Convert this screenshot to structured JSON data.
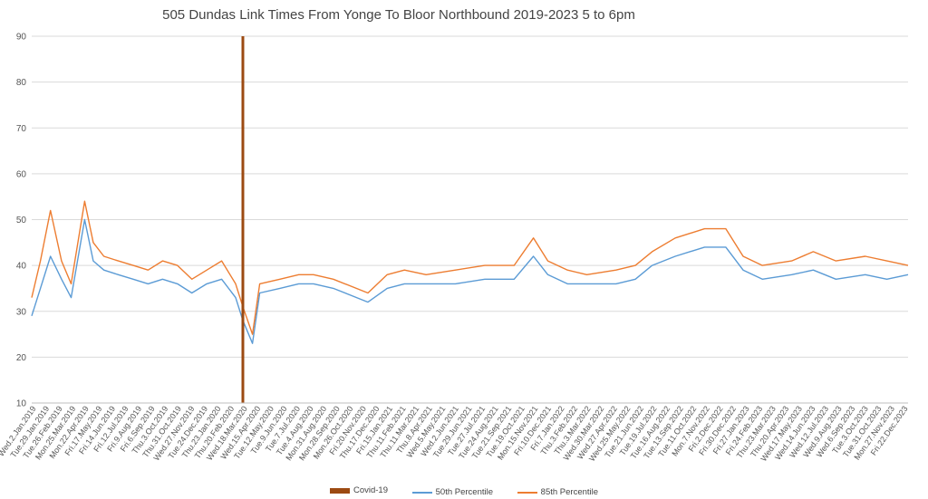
{
  "chart_data": {
    "type": "line",
    "title": "505 Dundas Link Times From Yonge To Bloor Northbound 2019-2023 5 to 6pm",
    "xlabel": "",
    "ylabel": "",
    "ylim": [
      10,
      90
    ],
    "yticks": [
      10,
      20,
      30,
      40,
      50,
      60,
      70,
      80,
      90
    ],
    "grid": true,
    "legend_position": "bottom",
    "x_range": [
      "2019-01-02",
      "2023-12-29"
    ],
    "x_tick_labels": [
      "Wed.2.Jan.2019",
      "Tue.29.Jan.2019",
      "Tue.26.Feb.2019",
      "Mon.25.Mar.2019",
      "Mon.22.Apr.2019",
      "Fri.17.May.2019",
      "Fri.14.Jun.2019",
      "Fri.12.Jul.2019",
      "Fri.9.Aug.2019",
      "Fri.6.Sep.2019",
      "Thu.3.Oct.2019",
      "Thu.31.Oct.2019",
      "Wed.27.Nov.2019",
      "Tue.24.Dec.2019",
      "Thu.23.Jan.2020",
      "Thu.20.Feb.2020",
      "Wed.18.Mar.2020",
      "Wed.15.Apr.2020",
      "Tue.12.May.2020",
      "Tue.9.Jun.2020",
      "Tue.7.Jul.2020",
      "Tue.4.Aug.2020",
      "Mon.31.Aug.2020",
      "Mon.28.Sep.2020",
      "Mon.26.Oct.2020",
      "Fri.20.Nov.2020",
      "Thu.17.Dec.2020",
      "Fri.15.Jan.2021",
      "Thu.11.Feb.2021",
      "Thu.11.Mar.2021",
      "Thu.8.Apr.2021",
      "Wed.5.May.2021",
      "Wed.2.Jun.2021",
      "Tue.29.Jun.2021",
      "Tue.27.Jul.2021",
      "Tue.24.Aug.2021",
      "Tue.21.Sep.2021",
      "Tue.19.Oct.2021",
      "Mon.15.Nov.2021",
      "Fri.10.Dec.2021",
      "Fri.7.Jan.2022",
      "Thu.3.Feb.2022",
      "Thu.3.Mar.2022",
      "Wed.30.Mar.2022",
      "Wed.27.Apr.2022",
      "Wed.25.May.2022",
      "Tue.21.Jun.2022",
      "Tue.19.Jul.2022",
      "Tue.16.Aug.2022",
      "Tue.13.Sep.2022",
      "Tue.11.Oct.2022",
      "Mon.7.Nov.2022",
      "Fri.2.Dec.2022",
      "Fri.30.Dec.2022",
      "Fri.27.Jan.2023",
      "Fri.24.Feb.2023",
      "Thu.23.Mar.2023",
      "Thu.20.Apr.2023",
      "Wed.17.May.2023",
      "Wed.14.Jun.2023",
      "Wed.12.Jul.2023",
      "Wed.9.Aug.2023",
      "Wed.6.Sep.2023",
      "Tue.3.Oct.2023",
      "Tue.31.Oct.2023",
      "Mon.27.Nov.2023",
      "Fri.22.Dec.2023"
    ],
    "covid_marker": {
      "name": "Covid-19",
      "x": "2020-03-16",
      "y": 90,
      "color": "#9c4a12"
    },
    "series": [
      {
        "name": "50th Percentile",
        "color": "#5b9bd5",
        "points": [
          [
            "2019-01-02",
            29
          ],
          [
            "2019-01-20",
            35
          ],
          [
            "2019-02-10",
            42
          ],
          [
            "2019-03-05",
            37
          ],
          [
            "2019-03-25",
            33
          ],
          [
            "2019-04-22",
            50
          ],
          [
            "2019-05-10",
            41
          ],
          [
            "2019-06-01",
            39
          ],
          [
            "2019-07-01",
            38
          ],
          [
            "2019-08-01",
            37
          ],
          [
            "2019-09-01",
            36
          ],
          [
            "2019-10-01",
            37
          ],
          [
            "2019-11-01",
            36
          ],
          [
            "2019-12-01",
            34
          ],
          [
            "2020-01-01",
            36
          ],
          [
            "2020-02-01",
            37
          ],
          [
            "2020-03-01",
            33
          ],
          [
            "2020-03-16",
            28
          ],
          [
            "2020-04-05",
            23
          ],
          [
            "2020-04-20",
            34
          ],
          [
            "2020-06-01",
            35
          ],
          [
            "2020-07-10",
            36
          ],
          [
            "2020-08-10",
            36
          ],
          [
            "2020-09-20",
            35
          ],
          [
            "2020-12-01",
            32
          ],
          [
            "2021-01-10",
            35
          ],
          [
            "2021-02-15",
            36
          ],
          [
            "2021-04-01",
            36
          ],
          [
            "2021-06-01",
            36
          ],
          [
            "2021-08-01",
            37
          ],
          [
            "2021-10-01",
            37
          ],
          [
            "2021-11-10",
            42
          ],
          [
            "2021-12-10",
            38
          ],
          [
            "2022-01-20",
            36
          ],
          [
            "2022-03-01",
            36
          ],
          [
            "2022-05-01",
            36
          ],
          [
            "2022-06-10",
            37
          ],
          [
            "2022-07-15",
            40
          ],
          [
            "2022-09-01",
            42
          ],
          [
            "2022-11-01",
            44
          ],
          [
            "2022-12-15",
            44
          ],
          [
            "2023-01-20",
            39
          ],
          [
            "2023-03-01",
            37
          ],
          [
            "2023-05-01",
            38
          ],
          [
            "2023-06-15",
            39
          ],
          [
            "2023-08-01",
            37
          ],
          [
            "2023-10-01",
            38
          ],
          [
            "2023-11-15",
            37
          ],
          [
            "2023-12-29",
            38
          ]
        ]
      },
      {
        "name": "85th Percentile",
        "color": "#ed7d31",
        "points": [
          [
            "2019-01-02",
            33
          ],
          [
            "2019-01-20",
            41
          ],
          [
            "2019-02-10",
            52
          ],
          [
            "2019-03-05",
            41
          ],
          [
            "2019-03-25",
            36
          ],
          [
            "2019-04-22",
            54
          ],
          [
            "2019-05-10",
            45
          ],
          [
            "2019-06-01",
            42
          ],
          [
            "2019-07-01",
            41
          ],
          [
            "2019-08-01",
            40
          ],
          [
            "2019-09-01",
            39
          ],
          [
            "2019-10-01",
            41
          ],
          [
            "2019-11-01",
            40
          ],
          [
            "2019-12-01",
            37
          ],
          [
            "2020-01-01",
            39
          ],
          [
            "2020-02-01",
            41
          ],
          [
            "2020-03-01",
            36
          ],
          [
            "2020-03-16",
            31
          ],
          [
            "2020-04-05",
            25
          ],
          [
            "2020-04-20",
            36
          ],
          [
            "2020-06-01",
            37
          ],
          [
            "2020-07-10",
            38
          ],
          [
            "2020-08-10",
            38
          ],
          [
            "2020-09-20",
            37
          ],
          [
            "2020-12-01",
            34
          ],
          [
            "2021-01-10",
            38
          ],
          [
            "2021-02-15",
            39
          ],
          [
            "2021-04-01",
            38
          ],
          [
            "2021-06-01",
            39
          ],
          [
            "2021-08-01",
            40
          ],
          [
            "2021-10-01",
            40
          ],
          [
            "2021-11-10",
            46
          ],
          [
            "2021-12-10",
            41
          ],
          [
            "2022-01-20",
            39
          ],
          [
            "2022-03-01",
            38
          ],
          [
            "2022-05-01",
            39
          ],
          [
            "2022-06-10",
            40
          ],
          [
            "2022-07-15",
            43
          ],
          [
            "2022-09-01",
            46
          ],
          [
            "2022-11-01",
            48
          ],
          [
            "2022-12-15",
            48
          ],
          [
            "2023-01-20",
            42
          ],
          [
            "2023-03-01",
            40
          ],
          [
            "2023-05-01",
            41
          ],
          [
            "2023-06-15",
            43
          ],
          [
            "2023-08-01",
            41
          ],
          [
            "2023-10-01",
            42
          ],
          [
            "2023-11-15",
            41
          ],
          [
            "2023-12-29",
            40
          ]
        ]
      }
    ]
  }
}
